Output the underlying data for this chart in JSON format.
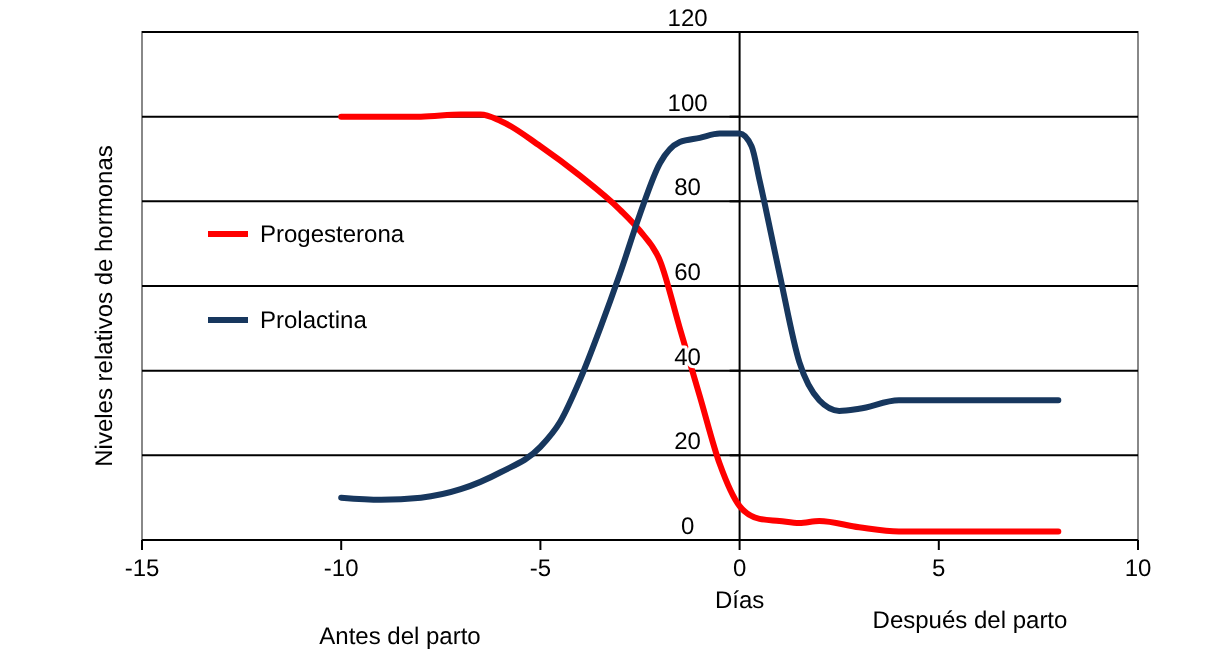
{
  "chart_data": {
    "type": "line",
    "xlabel": "Días",
    "ylabel": "Niveles relativos de hormonas",
    "annotations": [
      "Antes del parto",
      "Después del parto"
    ],
    "xlim": [
      -15,
      10
    ],
    "xticks": [
      -15,
      -10,
      -5,
      0,
      5,
      10
    ],
    "ylim": [
      0,
      120
    ],
    "yticks": [
      0,
      20,
      40,
      60,
      80,
      100,
      120
    ],
    "grid": "y",
    "legend": "left",
    "line_style": "solid",
    "marker": "none",
    "series": [
      {
        "name": "Progesterona",
        "color": "#ff0000",
        "x": [
          -10,
          -8,
          -7,
          -6.5,
          -6,
          -5,
          -4,
          -3,
          -2.5,
          -2,
          -1.5,
          -1,
          -0.5,
          0,
          0.5,
          1,
          1.5,
          2,
          3,
          4,
          5,
          8
        ],
        "values": [
          100,
          100,
          100.5,
          100.5,
          99,
          93,
          86,
          78,
          73,
          66,
          50,
          34,
          18,
          8,
          5,
          4.5,
          4,
          4.5,
          3,
          2,
          2,
          2
        ]
      },
      {
        "name": "Prolactina",
        "color": "#17375e",
        "x": [
          -10,
          -9,
          -8,
          -7,
          -6,
          -5,
          -4.5,
          -4,
          -3.5,
          -3,
          -2.5,
          -2,
          -1.5,
          -1,
          -0.5,
          0,
          0.3,
          0.5,
          1,
          1.5,
          2,
          2.5,
          3,
          4,
          5,
          8
        ],
        "values": [
          10,
          9.5,
          10,
          12,
          16,
          22,
          28,
          38,
          50,
          63,
          77,
          89,
          94,
          95,
          96,
          96,
          93,
          85,
          63,
          42,
          33,
          30.5,
          31,
          33,
          33,
          33
        ]
      }
    ]
  }
}
